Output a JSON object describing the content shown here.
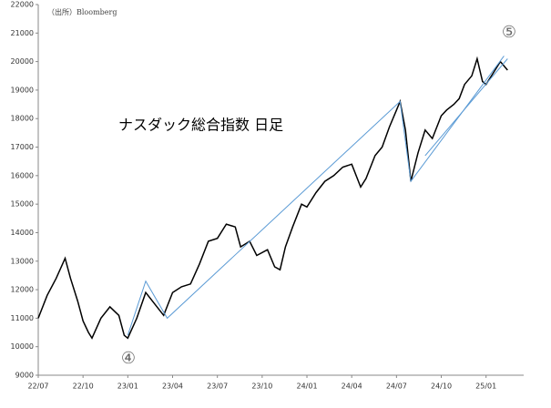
{
  "chart_data": {
    "type": "line",
    "annotations": [
      "（出所）Bloomberg",
      "ナスダック総合指数 日足",
      "④",
      "⑤"
    ],
    "xlim": [
      2022.5,
      2025.21
    ],
    "xticks": [
      {
        "value": 2022.5,
        "label": "22/07"
      },
      {
        "value": 2022.75,
        "label": "22/10"
      },
      {
        "value": 2023.0,
        "label": "23/01"
      },
      {
        "value": 2023.25,
        "label": "23/04"
      },
      {
        "value": 2023.5,
        "label": "23/07"
      },
      {
        "value": 2023.75,
        "label": "23/10"
      },
      {
        "value": 2024.0,
        "label": "24/01"
      },
      {
        "value": 2024.25,
        "label": "24/04"
      },
      {
        "value": 2024.5,
        "label": "24/07"
      },
      {
        "value": 2024.75,
        "label": "24/10"
      },
      {
        "value": 2025.0,
        "label": "25/01"
      }
    ],
    "ylim": [
      9000,
      22000
    ],
    "yticks": [
      9000,
      10000,
      11000,
      12000,
      13000,
      14000,
      15000,
      16000,
      17000,
      18000,
      19000,
      20000,
      21000,
      22000
    ],
    "grid": false,
    "series": [
      {
        "color": "#000000",
        "x": [
          2022.5,
          2022.55,
          2022.6,
          2022.65,
          2022.68,
          2022.72,
          2022.75,
          2022.78,
          2022.8,
          2022.85,
          2022.9,
          2022.95,
          2022.98,
          2023.0,
          2023.05,
          2023.1,
          2023.15,
          2023.2,
          2023.25,
          2023.3,
          2023.35,
          2023.4,
          2023.45,
          2023.5,
          2023.55,
          2023.6,
          2023.63,
          2023.68,
          2023.72,
          2023.78,
          2023.82,
          2023.85,
          2023.88,
          2023.92,
          2023.97,
          2024.0,
          2024.05,
          2024.1,
          2024.15,
          2024.2,
          2024.25,
          2024.3,
          2024.33,
          2024.38,
          2024.42,
          2024.46,
          2024.5,
          2024.52,
          2024.55,
          2024.58,
          2024.62,
          2024.66,
          2024.7,
          2024.75,
          2024.78,
          2024.82,
          2024.85,
          2024.88,
          2024.92,
          2024.95,
          2024.98,
          2025.0,
          2025.04,
          2025.08,
          2025.12
        ],
        "values": [
          11000,
          11800,
          12400,
          13100,
          12400,
          11600,
          10900,
          10500,
          10300,
          11000,
          11400,
          11100,
          10400,
          10300,
          11000,
          11900,
          11500,
          11100,
          11900,
          12100,
          12200,
          12900,
          13700,
          13800,
          14300,
          14200,
          13500,
          13700,
          13200,
          13400,
          12800,
          12700,
          13500,
          14200,
          15000,
          14900,
          15400,
          15800,
          16000,
          16300,
          16400,
          15600,
          15900,
          16700,
          17000,
          17700,
          18300,
          18600,
          17600,
          15800,
          16800,
          17600,
          17300,
          18100,
          18300,
          18500,
          18700,
          19200,
          19500,
          20100,
          19300,
          19200,
          19600,
          20000,
          19700
        ]
      },
      {
        "color": "#5b9bd5",
        "x": [
          2023.0,
          2023.1,
          2023.22,
          2024.52,
          2024.58,
          2025.1
        ],
        "values": [
          10400,
          12300,
          11000,
          18600,
          15800,
          20200
        ]
      },
      {
        "color": "#5b9bd5",
        "x": [
          2024.66,
          2025.12
        ],
        "values": [
          16700,
          20100
        ]
      }
    ]
  }
}
